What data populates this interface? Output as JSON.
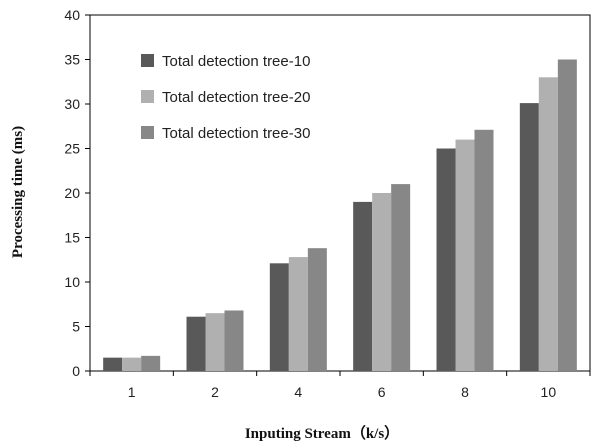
{
  "chart_data": {
    "type": "bar",
    "title": "",
    "xlabel": "Inputing Stream（k/s）",
    "ylabel": "Processing time (ms)",
    "categories": [
      "1",
      "2",
      "4",
      "6",
      "8",
      "10"
    ],
    "ylim": [
      0,
      40
    ],
    "yticks": [
      0,
      5,
      10,
      15,
      20,
      25,
      30,
      35,
      40
    ],
    "grid": false,
    "legend_position": "top-left",
    "series": [
      {
        "name": "Total detection tree-10",
        "color": "#595959",
        "values": [
          1.5,
          6.1,
          12.1,
          19.0,
          25.0,
          30.1
        ]
      },
      {
        "name": "Total detection tree-20",
        "color": "#b0b0b0",
        "values": [
          1.5,
          6.5,
          12.8,
          20.0,
          26.0,
          33.0
        ]
      },
      {
        "name": "Total detection tree-30",
        "color": "#878787",
        "values": [
          1.7,
          6.8,
          13.8,
          21.0,
          27.1,
          35.0
        ]
      }
    ]
  }
}
